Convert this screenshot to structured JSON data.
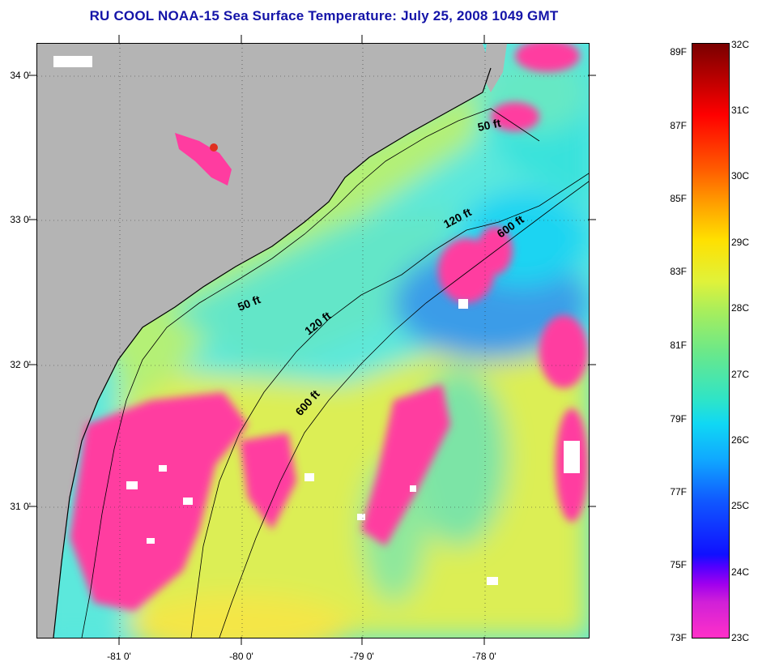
{
  "title": "RU COOL  NOAA-15  Sea Surface Temperature:  July 25, 2008 1049 GMT",
  "map": {
    "lon_labels": [
      "-81 0'",
      "-80 0'",
      "-79 0'",
      "-78 0'"
    ],
    "lat_labels": [
      "34 0'",
      "33 0'",
      "32 0'",
      "31 0'"
    ],
    "contour_labels": [
      "50 ft",
      "120 ft",
      "600 ft",
      "50 ft",
      "120 ft",
      "600 ft"
    ],
    "colors": {
      "land": "#b4b4b4",
      "cloud": "#ff3ca0",
      "nodata": "#ffffff",
      "coast": "#000000"
    }
  },
  "colorbar": {
    "fahrenheit": [
      "89F",
      "87F",
      "85F",
      "83F",
      "81F",
      "79F",
      "77F",
      "75F",
      "73F"
    ],
    "celsius": [
      "32C",
      "31C",
      "30C",
      "29C",
      "28C",
      "27C",
      "26C",
      "25C",
      "24C",
      "23C"
    ]
  }
}
